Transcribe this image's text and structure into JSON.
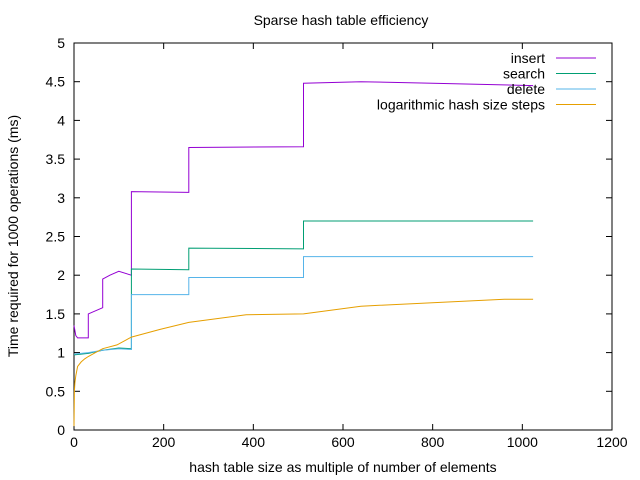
{
  "chart_data": {
    "type": "line",
    "title": "Sparse hash table efficiency",
    "xlabel": "hash table size as multiple of number of elements",
    "ylabel": "Time required for 1000 operations (ms)",
    "xlim": [
      0,
      1200
    ],
    "ylim": [
      0,
      5
    ],
    "xticks": [
      "0",
      "200",
      "400",
      "600",
      "800",
      "1000",
      "1200"
    ],
    "yticks": [
      "0",
      "0.5",
      "1",
      "1.5",
      "2",
      "2.5",
      "3",
      "3.5",
      "4",
      "4.5",
      "5"
    ],
    "grid": false,
    "legend_position": "top-right",
    "series": [
      {
        "name": "insert",
        "color": "#9400d3",
        "points": [
          [
            0,
            1.35
          ],
          [
            4,
            1.22
          ],
          [
            8,
            1.19
          ],
          [
            32,
            1.19
          ],
          [
            32,
            1.5
          ],
          [
            64,
            1.58
          ],
          [
            64,
            1.95
          ],
          [
            80,
            2.0
          ],
          [
            100,
            2.05
          ],
          [
            128,
            2.0
          ],
          [
            128,
            3.08
          ],
          [
            256,
            3.07
          ],
          [
            256,
            3.65
          ],
          [
            512,
            3.66
          ],
          [
            512,
            4.48
          ],
          [
            640,
            4.5
          ],
          [
            800,
            4.48
          ],
          [
            1024,
            4.45
          ]
        ]
      },
      {
        "name": "search",
        "color": "#009e73",
        "points": [
          [
            0,
            0.97
          ],
          [
            32,
            0.99
          ],
          [
            64,
            1.03
          ],
          [
            100,
            1.06
          ],
          [
            128,
            1.05
          ],
          [
            128,
            2.08
          ],
          [
            256,
            2.07
          ],
          [
            256,
            2.35
          ],
          [
            512,
            2.34
          ],
          [
            512,
            2.7
          ],
          [
            1024,
            2.7
          ]
        ]
      },
      {
        "name": "delete",
        "color": "#56b4e9",
        "points": [
          [
            0,
            0.98
          ],
          [
            32,
            1.0
          ],
          [
            64,
            1.03
          ],
          [
            100,
            1.05
          ],
          [
            128,
            1.04
          ],
          [
            128,
            1.75
          ],
          [
            256,
            1.75
          ],
          [
            256,
            1.97
          ],
          [
            512,
            1.97
          ],
          [
            512,
            2.24
          ],
          [
            1024,
            2.24
          ]
        ]
      },
      {
        "name": "logarithmic hash size steps",
        "color": "#e69f00",
        "points": [
          [
            0,
            0.05
          ],
          [
            1,
            0.5
          ],
          [
            2,
            0.61
          ],
          [
            4,
            0.7
          ],
          [
            8,
            0.82
          ],
          [
            16,
            0.88
          ],
          [
            24,
            0.92
          ],
          [
            32,
            0.95
          ],
          [
            48,
            1.0
          ],
          [
            64,
            1.05
          ],
          [
            96,
            1.1
          ],
          [
            128,
            1.2
          ],
          [
            192,
            1.3
          ],
          [
            256,
            1.39
          ],
          [
            384,
            1.49
          ],
          [
            512,
            1.5
          ],
          [
            640,
            1.6
          ],
          [
            960,
            1.69
          ],
          [
            1024,
            1.69
          ]
        ]
      }
    ]
  }
}
